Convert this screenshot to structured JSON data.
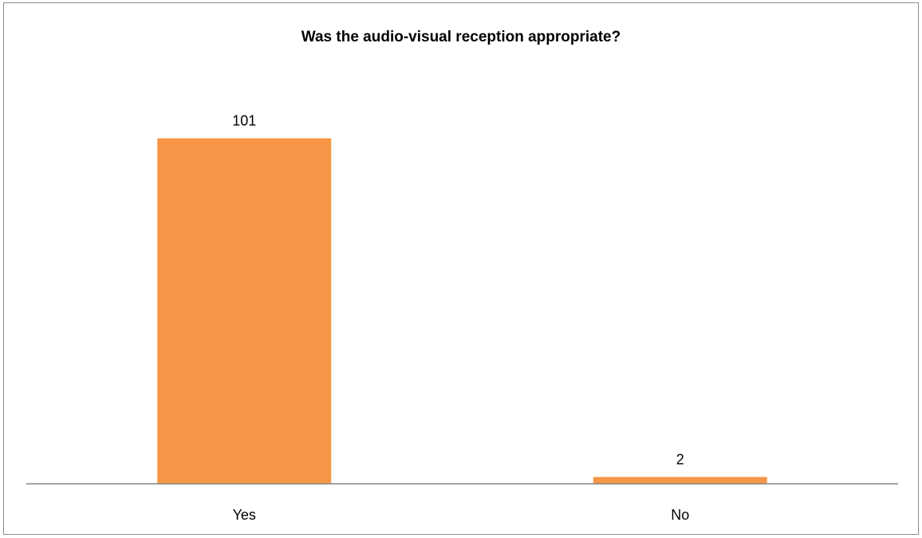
{
  "chart_data": {
    "type": "bar",
    "title": "Was the audio-visual reception appropriate?",
    "categories": [
      "Yes",
      "No"
    ],
    "values": [
      101,
      2
    ],
    "xlabel": "",
    "ylabel": "",
    "ylim": [
      0,
      110
    ],
    "grid": false,
    "legend": "none",
    "data_labels": true,
    "bar_color": "#F79646",
    "axis_color": "#868686"
  }
}
